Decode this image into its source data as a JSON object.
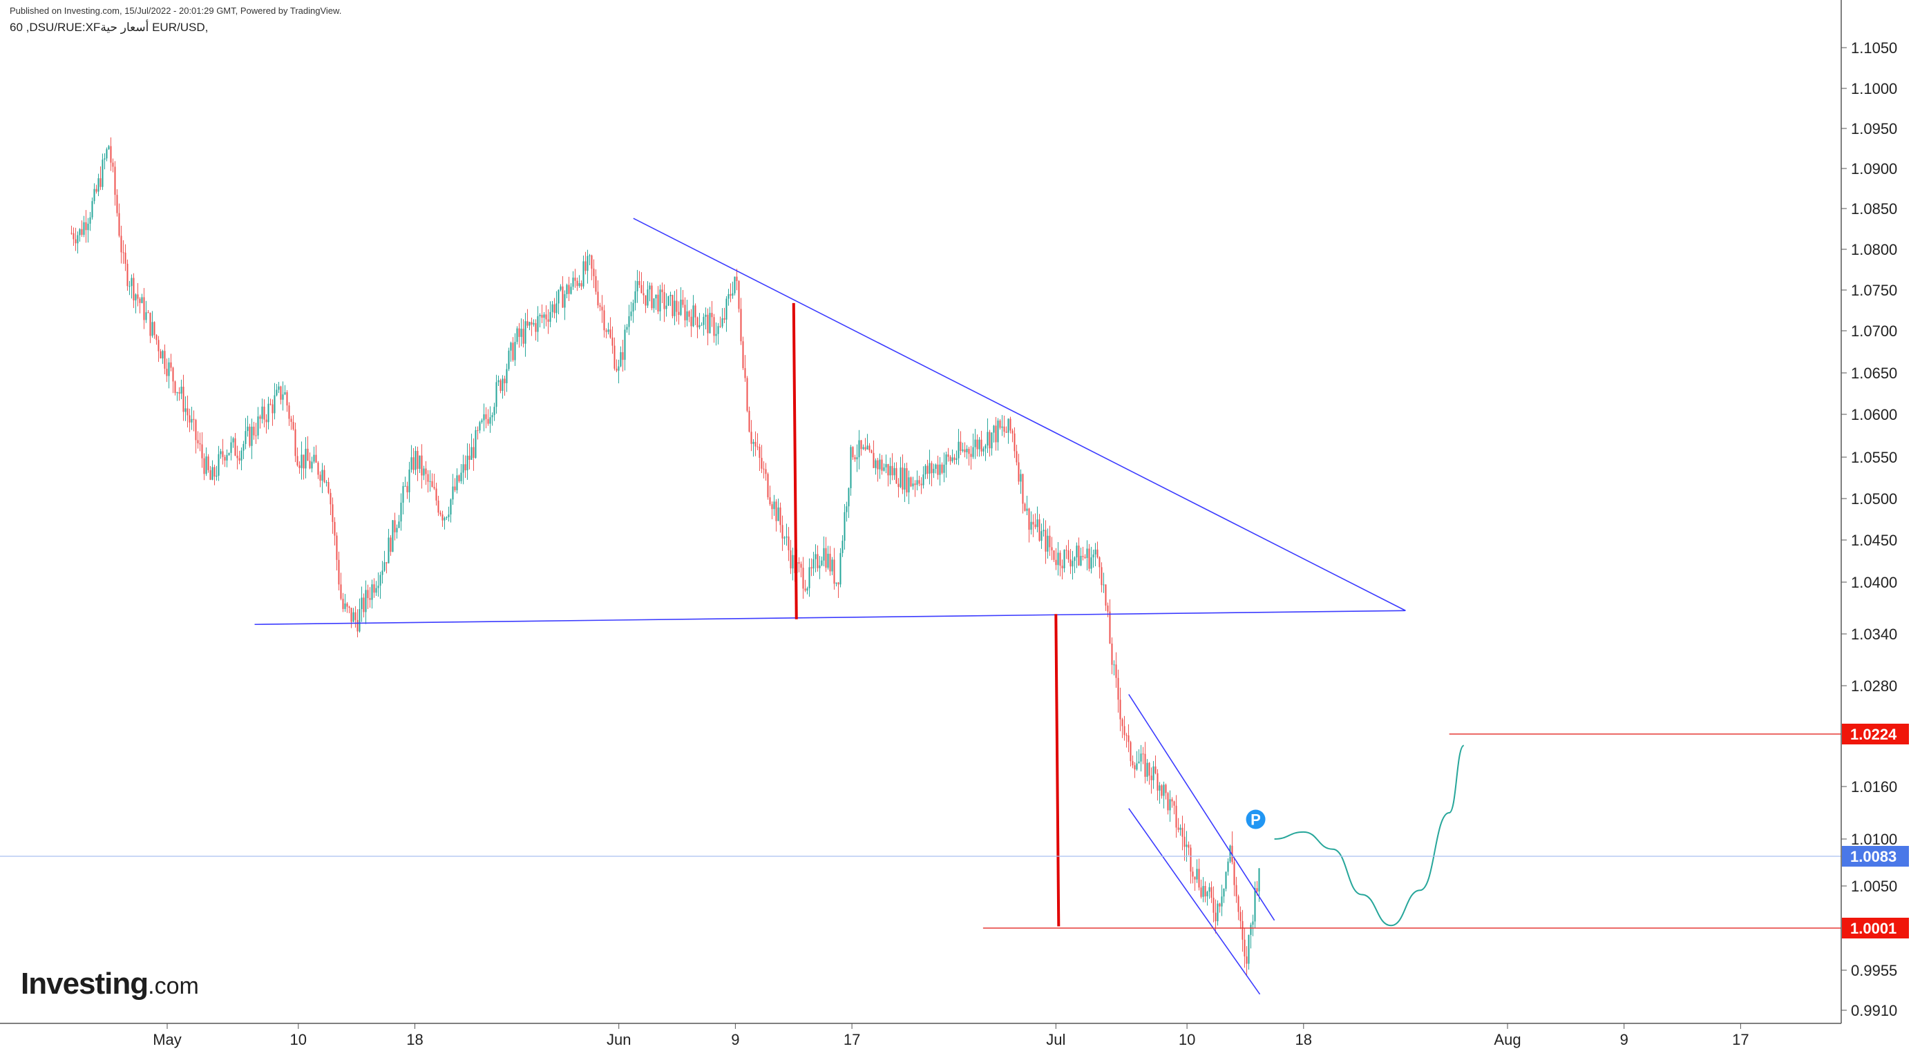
{
  "header": {
    "published": "Published on Investing.com, 15/Jul/2022 - 20:01:29 GMT, Powered by TradingView.",
    "symbol": "60 ,DSU/RUE:XFأسعار حية EUR/USD,"
  },
  "logo": {
    "word": "Investing",
    "domain": ".com"
  },
  "colors": {
    "up": "#26a69a",
    "down": "#ef5350",
    "trendline": "#3b3bff",
    "measure": "#e00000",
    "level": "#e53935",
    "current": "#4a78e8",
    "projection": "#26a69a",
    "marker": "#2196f3"
  },
  "chart_data": {
    "type": "candlestick",
    "timeframe": "60",
    "pair": "EUR/USD",
    "y_ticks": [
      "1.1050",
      "1.1000",
      "1.0950",
      "1.0900",
      "1.0850",
      "1.0800",
      "1.0750",
      "1.0700",
      "1.0650",
      "1.0600",
      "1.0550",
      "1.0500",
      "1.0450",
      "1.0400",
      "1.0340",
      "1.0280",
      "1.0160",
      "1.0100",
      "1.0050",
      "0.9955",
      "0.9910"
    ],
    "y_range": [
      0.9903,
      1.1062
    ],
    "x_ticks": [
      "May",
      "10",
      "18",
      "Jun",
      "9",
      "17",
      "Jul",
      "10",
      "18",
      "Aug",
      "9",
      "17"
    ],
    "price_path": [
      [
        "2022-04-25",
        1.082
      ],
      [
        "2022-04-26",
        1.086
      ],
      [
        "2022-04-27",
        1.093
      ],
      [
        "2022-04-28",
        1.078
      ],
      [
        "2022-05-02",
        1.062
      ],
      [
        "2022-05-04",
        1.052
      ],
      [
        "2022-05-05",
        1.056
      ],
      [
        "2022-05-06",
        1.056
      ],
      [
        "2022-05-09",
        1.063
      ],
      [
        "2022-05-10",
        1.055
      ],
      [
        "2022-05-12",
        1.053
      ],
      [
        "2022-05-13",
        1.037
      ],
      [
        "2022-05-14",
        1.0355
      ],
      [
        "2022-05-16",
        1.043
      ],
      [
        "2022-05-18",
        1.055
      ],
      [
        "2022-05-20",
        1.048
      ],
      [
        "2022-05-23",
        1.06
      ],
      [
        "2022-05-25",
        1.069
      ],
      [
        "2022-05-27",
        1.072
      ],
      [
        "2022-05-30",
        1.078
      ],
      [
        "2022-06-01",
        1.065
      ],
      [
        "2022-06-02",
        1.075
      ],
      [
        "2022-06-06",
        1.072
      ],
      [
        "2022-06-08",
        1.07
      ],
      [
        "2022-06-09",
        1.077
      ],
      [
        "2022-06-10",
        1.058
      ],
      [
        "2022-06-13",
        1.042
      ],
      [
        "2022-06-14",
        1.04
      ],
      [
        "2022-06-15",
        1.044
      ],
      [
        "2022-06-16",
        1.04
      ],
      [
        "2022-06-17",
        1.056
      ],
      [
        "2022-06-21",
        1.052
      ],
      [
        "2022-06-23",
        1.054
      ],
      [
        "2022-06-27",
        1.058
      ],
      [
        "2022-06-28",
        1.058
      ],
      [
        "2022-06-29",
        1.048
      ],
      [
        "2022-07-01",
        1.043
      ],
      [
        "2022-07-04",
        1.043
      ],
      [
        "2022-07-05",
        1.029
      ],
      [
        "2022-07-06",
        1.02
      ],
      [
        "2022-07-08",
        1.017
      ],
      [
        "2022-07-11",
        1.005
      ],
      [
        "2022-07-12",
        1.002
      ],
      [
        "2022-07-13",
        1.009
      ],
      [
        "2022-07-14",
        0.9955
      ],
      [
        "2022-07-15",
        1.0083
      ]
    ],
    "trendlines": [
      {
        "name": "descending-resistance",
        "from": [
          "2022-06-02",
          1.0838
        ],
        "to": [
          "2022-07-25",
          1.0367
        ]
      },
      {
        "name": "horizontal-support",
        "from": [
          "2022-05-07",
          1.0351
        ],
        "to": [
          "2022-07-25",
          1.0367
        ]
      },
      {
        "name": "channel-upper",
        "from": [
          "2022-07-06",
          1.027
        ],
        "to": [
          "2022-07-16",
          1.001
        ]
      },
      {
        "name": "channel-lower",
        "from": [
          "2022-07-06",
          1.0135
        ],
        "to": [
          "2022-07-15",
          0.9928
        ]
      }
    ],
    "measure_lines": [
      {
        "from": [
          "2022-06-13",
          1.0734
        ],
        "to": [
          "2022-06-13",
          1.0357
        ]
      },
      {
        "from": [
          "2022-07-01",
          1.0363
        ],
        "to": [
          "2022-07-01",
          1.0003
        ]
      }
    ],
    "levels": [
      {
        "label": "1.0224",
        "value": 1.0224,
        "from": "2022-07-28"
      },
      {
        "label": "1.0001",
        "value": 1.0001,
        "from": "2022-06-26"
      }
    ],
    "current_price": {
      "label": "1.0083",
      "value": 1.0083
    },
    "marker": {
      "label": "P",
      "date": "2022-07-15",
      "value": 1.0113
    },
    "projection": [
      [
        "2022-07-16",
        1.01
      ],
      [
        "2022-07-18",
        1.0108
      ],
      [
        "2022-07-20",
        1.009
      ],
      [
        "2022-07-22",
        1.004
      ],
      [
        "2022-07-24",
        1.0004
      ],
      [
        "2022-07-26",
        1.0045
      ],
      [
        "2022-07-28",
        1.013
      ],
      [
        "2022-07-29",
        1.021
      ]
    ]
  }
}
